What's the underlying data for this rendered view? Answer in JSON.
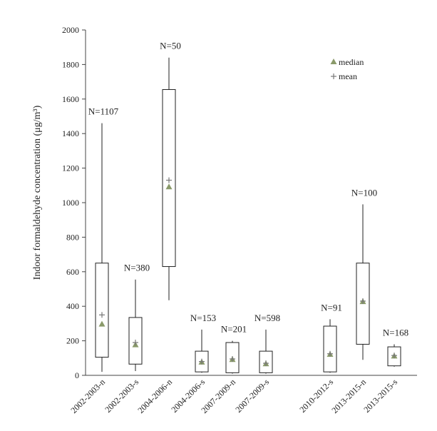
{
  "chart_data": {
    "type": "boxplot",
    "title": "",
    "xlabel": "",
    "ylabel": "Indoor formaldehyde concentration (μg/m³)",
    "ylim": [
      0,
      2000
    ],
    "yticks": [
      0,
      200,
      400,
      600,
      800,
      1000,
      1200,
      1400,
      1600,
      1800,
      2000
    ],
    "grid": false,
    "legend": {
      "position": "top-right",
      "entries": [
        {
          "symbol": "triangle",
          "label": "median"
        },
        {
          "symbol": "plus",
          "label": "mean"
        }
      ]
    },
    "categories": [
      "2002-2003-n",
      "2002-2003-s",
      "2004-2006-n",
      "2004-2006-s",
      "2007-2009-n",
      "2007-2009-s",
      "2010-2012-s",
      "2013-2015-n",
      "2013-2015-s"
    ],
    "boxes": [
      {
        "category": "2002-2003-n",
        "n_label": "N=1107",
        "min": 20,
        "q1": 105,
        "median": 295,
        "mean": 350,
        "q3": 650,
        "max": 1460
      },
      {
        "category": "2002-2003-s",
        "n_label": "N=380",
        "min": 25,
        "q1": 65,
        "median": 175,
        "mean": 190,
        "q3": 335,
        "max": 555
      },
      {
        "category": "2004-2006-n",
        "n_label": "N=50",
        "min": 435,
        "q1": 630,
        "median": 1090,
        "mean": 1130,
        "q3": 1655,
        "max": 1840
      },
      {
        "category": "2004-2006-s",
        "n_label": "N=153",
        "min": 15,
        "q1": 20,
        "median": 75,
        "mean": 80,
        "q3": 140,
        "max": 265
      },
      {
        "category": "2007-2009-n",
        "n_label": "N=201",
        "min": 10,
        "q1": 15,
        "median": 90,
        "mean": 95,
        "q3": 190,
        "max": 200
      },
      {
        "category": "2007-2009-s",
        "n_label": "N=598",
        "min": 10,
        "q1": 15,
        "median": 65,
        "mean": 70,
        "q3": 140,
        "max": 265
      },
      {
        "category": "2010-2012-s",
        "n_label": "N=91",
        "min": 15,
        "q1": 20,
        "median": 120,
        "mean": 125,
        "q3": 285,
        "max": 325
      },
      {
        "category": "2013-2015-n",
        "n_label": "N=100",
        "min": 90,
        "q1": 180,
        "median": 425,
        "mean": 430,
        "q3": 650,
        "max": 990
      },
      {
        "category": "2013-2015-s",
        "n_label": "N=168",
        "min": 50,
        "q1": 55,
        "median": 110,
        "mean": 115,
        "q3": 165,
        "max": 180
      }
    ],
    "colors": {
      "median_marker": "#8a9a6a",
      "mean_marker": "#777777",
      "box_stroke": "#222222"
    }
  }
}
